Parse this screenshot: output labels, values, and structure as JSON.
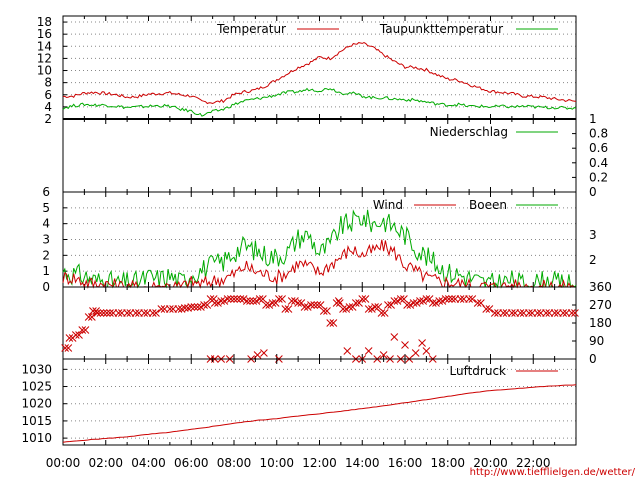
{
  "source_url": "http://www.tiefflielgen.de/wetter/",
  "time_axis": {
    "ticks": [
      "00:00",
      "02:00",
      "04:00",
      "06:00",
      "08:00",
      "10:00",
      "12:00",
      "14:00",
      "16:00",
      "18:00",
      "20:00",
      "22:00"
    ],
    "range_hours": [
      0,
      24
    ]
  },
  "colors": {
    "red": "#cc0000",
    "green": "#00aa00",
    "grid": "#888888"
  },
  "chart_data": [
    {
      "type": "line",
      "panel": "temperature",
      "ylim": [
        2,
        19
      ],
      "yticks": [
        "2",
        "4",
        "6",
        "8",
        "10",
        "12",
        "14",
        "16",
        "18"
      ],
      "legend": [
        "Temperatur",
        "Taupunkttemperatur"
      ],
      "x": [
        0,
        0.5,
        1,
        1.5,
        2,
        2.5,
        3,
        3.5,
        4,
        4.5,
        5,
        5.5,
        6,
        6.5,
        7,
        7.5,
        8,
        8.5,
        9,
        9.5,
        10,
        10.5,
        11,
        11.5,
        12,
        12.5,
        13,
        13.5,
        14,
        14.5,
        15,
        15.5,
        16,
        16.5,
        17,
        17.5,
        18,
        18.5,
        19,
        19.5,
        20,
        20.5,
        21,
        21.5,
        22,
        22.5,
        23,
        23.5,
        24
      ],
      "series": [
        {
          "name": "Temperatur",
          "color": "red",
          "values": [
            5.7,
            5.8,
            6.3,
            6.4,
            6.2,
            6.0,
            5.6,
            5.7,
            6.1,
            6.2,
            6.3,
            6.0,
            5.8,
            4.9,
            4.7,
            5.0,
            6.0,
            6.5,
            6.8,
            7.5,
            8.5,
            9.5,
            10.5,
            11.2,
            12.2,
            12.0,
            13.2,
            14.2,
            14.5,
            13.8,
            12.6,
            11.5,
            10.6,
            10.5,
            10.1,
            9.3,
            8.6,
            8.4,
            7.7,
            7.1,
            6.6,
            6.4,
            6.2,
            5.8,
            5.7,
            5.6,
            5.3,
            5.1,
            4.9
          ]
        },
        {
          "name": "Taupunkttemperatur",
          "color": "green",
          "values": [
            3.8,
            4.2,
            4.4,
            4.3,
            4.3,
            4.1,
            3.9,
            4.0,
            4.1,
            4.2,
            4.1,
            3.6,
            3.3,
            2.6,
            3.2,
            3.6,
            4.4,
            5.0,
            5.3,
            5.6,
            6.0,
            6.4,
            6.5,
            6.9,
            6.7,
            7.1,
            6.3,
            6.3,
            5.8,
            5.5,
            5.5,
            5.3,
            5.2,
            5.1,
            4.8,
            4.5,
            4.3,
            4.4,
            4.1,
            4.1,
            4.0,
            4.1,
            4.0,
            4.1,
            4.0,
            3.9,
            3.9,
            3.8,
            3.8
          ]
        }
      ]
    },
    {
      "type": "line",
      "panel": "precipitation",
      "ylim": [
        0,
        1
      ],
      "yticks": [
        "0",
        "0.2",
        "0.4",
        "0.6",
        "0.8",
        "1"
      ],
      "legend": [
        "Niederschlag"
      ],
      "series": [
        {
          "name": "Niederschlag",
          "color": "green",
          "values": [
            0,
            0
          ]
        }
      ]
    },
    {
      "type": "line",
      "panel": "wind",
      "ylim": [
        0,
        6
      ],
      "yticks_left": [
        "0",
        "1",
        "2",
        "3",
        "4",
        "5",
        "6"
      ],
      "yticks_right": [
        "2",
        "3"
      ],
      "legend": [
        "Wind",
        "Boeen"
      ],
      "x": [
        0,
        0.5,
        1,
        1.5,
        2,
        2.5,
        3,
        3.5,
        4,
        4.5,
        5,
        5.5,
        6,
        6.5,
        7,
        7.5,
        8,
        8.5,
        9,
        9.5,
        10,
        10.5,
        11,
        11.5,
        12,
        12.5,
        13,
        13.5,
        14,
        14.5,
        15,
        15.5,
        16,
        16.5,
        17,
        17.5,
        18,
        18.5,
        19,
        19.5,
        20,
        20.5,
        21,
        21.5,
        22,
        22.5,
        23,
        23.5,
        24
      ],
      "series": [
        {
          "name": "Wind",
          "color": "red",
          "values": [
            0.6,
            0.6,
            0.3,
            0.2,
            0.2,
            0.1,
            0,
            0,
            0,
            0,
            0.1,
            0,
            0.3,
            0.2,
            0.4,
            0.5,
            0.8,
            1.3,
            1.0,
            0.8,
            0.6,
            0.9,
            1.5,
            1.3,
            0.9,
            1.4,
            1.9,
            2.4,
            2.0,
            2.3,
            2.6,
            2.2,
            1.4,
            1.0,
            0.6,
            0.4,
            0.3,
            0.2,
            0.1,
            0.1,
            0,
            0,
            0.1,
            0,
            0,
            0,
            0,
            0,
            0
          ]
        },
        {
          "name": "Boeen",
          "color": "green",
          "values": [
            1.0,
            0.8,
            0.7,
            0.4,
            0.4,
            0.2,
            0.3,
            0.3,
            0.6,
            0.5,
            0.7,
            0.3,
            0.8,
            1.1,
            1.4,
            1.6,
            2.2,
            2.6,
            2.3,
            2.0,
            1.9,
            2.2,
            3.1,
            3.3,
            2.1,
            2.7,
            3.8,
            4.1,
            4.4,
            4.0,
            4.2,
            3.8,
            3.3,
            2.5,
            1.9,
            1.4,
            0.9,
            0.8,
            0.6,
            0.3,
            0.2,
            0.3,
            0.4,
            0.2,
            0.2,
            0.4,
            0.3,
            0.2,
            0.1
          ]
        }
      ]
    },
    {
      "type": "scatter",
      "panel": "wind_direction",
      "ylim": [
        0,
        360
      ],
      "yticks": [
        "0",
        "90",
        "180",
        "270",
        "360"
      ],
      "marker": "x",
      "x": [
        0.1,
        0.3,
        0.6,
        0.9,
        1.2,
        1.4,
        1.6,
        1.9,
        2.2,
        2.6,
        3.0,
        3.4,
        3.8,
        4.2,
        4.6,
        5.0,
        5.4,
        5.7,
        6.0,
        6.3,
        6.6,
        6.9,
        7.1,
        7.4,
        7.7,
        8.0,
        8.3,
        8.6,
        8.9,
        9.2,
        9.5,
        9.8,
        10.1,
        10.4,
        10.7,
        11.0,
        11.3,
        11.6,
        11.9,
        12.2,
        12.5,
        12.8,
        13.1,
        13.4,
        13.7,
        14.0,
        14.3,
        14.6,
        14.9,
        15.2,
        15.5,
        15.8,
        16.1,
        16.4,
        16.7,
        17.0,
        17.3,
        17.6,
        17.9,
        18.2,
        18.6,
        19.0,
        19.4,
        19.8,
        20.2,
        20.6,
        21.0,
        21.4,
        21.8,
        22.2,
        22.6,
        23.0,
        23.4,
        23.8
      ],
      "values": [
        55,
        105,
        120,
        145,
        210,
        240,
        230,
        230,
        230,
        230,
        230,
        230,
        230,
        230,
        250,
        250,
        250,
        255,
        260,
        260,
        270,
        300,
        280,
        290,
        300,
        300,
        300,
        290,
        290,
        300,
        270,
        280,
        300,
        250,
        290,
        280,
        260,
        270,
        270,
        240,
        180,
        280,
        250,
        260,
        280,
        300,
        250,
        260,
        230,
        270,
        290,
        300,
        270,
        280,
        290,
        300,
        280,
        290,
        300,
        300,
        300,
        300,
        280,
        250,
        230,
        230,
        230,
        230,
        230,
        230,
        230,
        230,
        230,
        230
      ],
      "extra_points": [
        {
          "x": 6.9,
          "y": 0
        },
        {
          "x": 7.1,
          "y": 0
        },
        {
          "x": 7.4,
          "y": 0
        },
        {
          "x": 7.8,
          "y": 0
        },
        {
          "x": 8.8,
          "y": 0
        },
        {
          "x": 9.1,
          "y": 20
        },
        {
          "x": 9.4,
          "y": 30
        },
        {
          "x": 10.1,
          "y": 0
        },
        {
          "x": 12.9,
          "y": 290
        },
        {
          "x": 13.3,
          "y": 40
        },
        {
          "x": 13.7,
          "y": 0
        },
        {
          "x": 14.0,
          "y": 0
        },
        {
          "x": 14.3,
          "y": 40
        },
        {
          "x": 14.7,
          "y": 0
        },
        {
          "x": 15.0,
          "y": 20
        },
        {
          "x": 15.3,
          "y": 0
        },
        {
          "x": 15.5,
          "y": 110
        },
        {
          "x": 15.8,
          "y": 0
        },
        {
          "x": 16.0,
          "y": 70
        },
        {
          "x": 16.2,
          "y": 0
        },
        {
          "x": 16.5,
          "y": 30
        },
        {
          "x": 16.8,
          "y": 80
        },
        {
          "x": 17.0,
          "y": 40
        },
        {
          "x": 17.3,
          "y": 0
        }
      ]
    },
    {
      "type": "line",
      "panel": "pressure",
      "ylim": [
        1008,
        1033
      ],
      "yticks": [
        "1010",
        "1015",
        "1020",
        "1025",
        "1030"
      ],
      "legend": [
        "Luftdruck"
      ],
      "x": [
        0,
        1,
        2,
        3,
        4,
        5,
        6,
        7,
        8,
        9,
        10,
        11,
        12,
        13,
        14,
        15,
        16,
        17,
        18,
        19,
        20,
        21,
        22,
        23,
        24
      ],
      "series": [
        {
          "name": "Luftdruck",
          "color": "red",
          "values": [
            1008.8,
            1009.4,
            1009.9,
            1010.4,
            1011.1,
            1011.7,
            1012.5,
            1013.4,
            1014.3,
            1015.1,
            1015.7,
            1016.4,
            1017.1,
            1017.8,
            1018.6,
            1019.4,
            1020.3,
            1021.2,
            1022.1,
            1023.1,
            1023.8,
            1024.3,
            1024.8,
            1025.2,
            1025.5
          ]
        }
      ]
    }
  ]
}
